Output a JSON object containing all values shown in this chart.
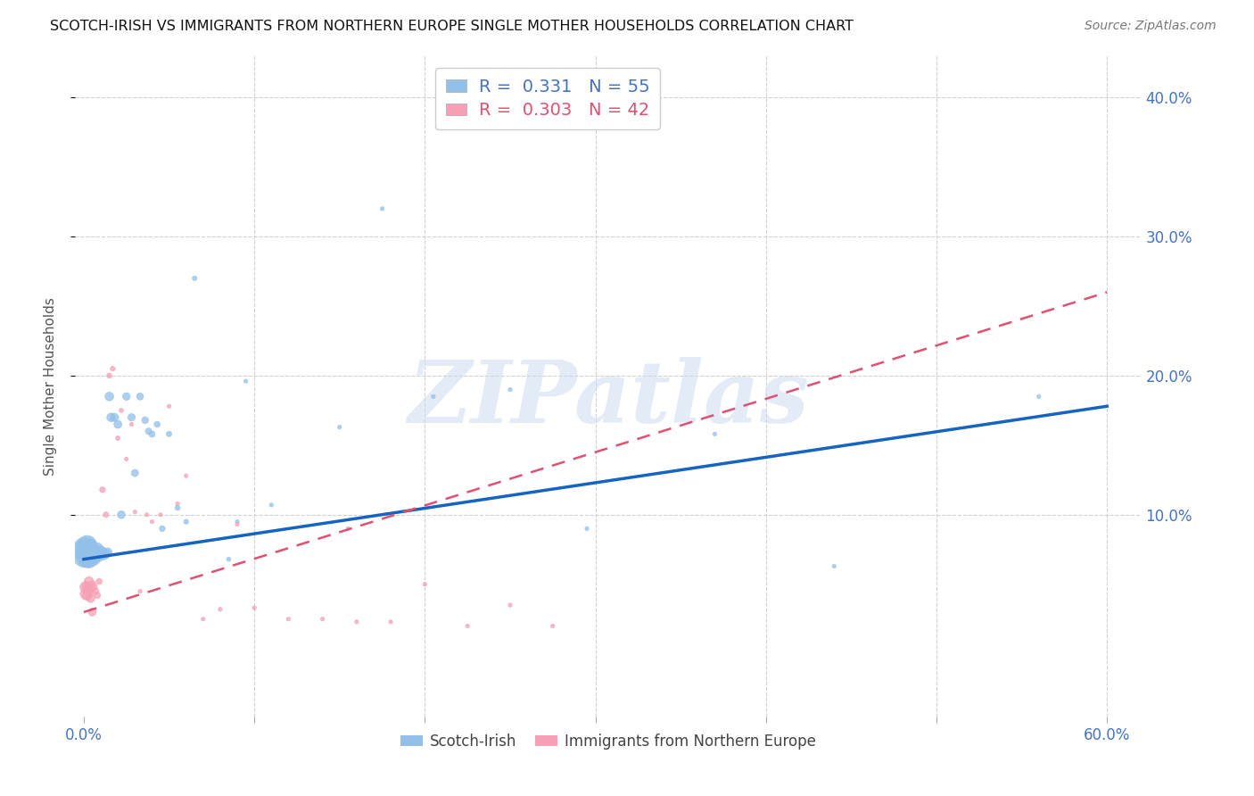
{
  "title": "SCOTCH-IRISH VS IMMIGRANTS FROM NORTHERN EUROPE SINGLE MOTHER HOUSEHOLDS CORRELATION CHART",
  "source": "Source: ZipAtlas.com",
  "ylabel": "Single Mother Households",
  "xlim": [
    -0.005,
    0.62
  ],
  "ylim": [
    -0.045,
    0.43
  ],
  "yticks": [
    0.1,
    0.2,
    0.3,
    0.4
  ],
  "yticklabels": [
    "10.0%",
    "20.0%",
    "30.0%",
    "40.0%"
  ],
  "xtick_positions": [
    0.0,
    0.1,
    0.2,
    0.3,
    0.4,
    0.5,
    0.6
  ],
  "xtick_labels": [
    "0.0%",
    "",
    "",
    "",
    "",
    "",
    "60.0%"
  ],
  "background_color": "#ffffff",
  "grid_color": "#d0d0d0",
  "watermark": "ZIPatlas",
  "series1": {
    "name": "Scotch-Irish",
    "color": "#92C0E8",
    "R": 0.331,
    "N": 55,
    "trend_color": "#1565C0",
    "trend_style": "solid",
    "x": [
      0.001,
      0.001,
      0.002,
      0.002,
      0.003,
      0.003,
      0.004,
      0.004,
      0.005,
      0.005,
      0.006,
      0.006,
      0.007,
      0.007,
      0.008,
      0.008,
      0.009,
      0.009,
      0.01,
      0.01,
      0.011,
      0.012,
      0.013,
      0.014,
      0.015,
      0.016,
      0.018,
      0.02,
      0.022,
      0.025,
      0.028,
      0.03,
      0.033,
      0.036,
      0.038,
      0.04,
      0.043,
      0.046,
      0.05,
      0.055,
      0.06,
      0.065,
      0.085,
      0.095,
      0.11,
      0.155,
      0.175,
      0.205,
      0.25,
      0.295,
      0.37,
      0.44,
      0.56,
      0.15,
      0.09
    ],
    "y": [
      0.072,
      0.075,
      0.07,
      0.078,
      0.068,
      0.074,
      0.072,
      0.077,
      0.07,
      0.075,
      0.073,
      0.068,
      0.074,
      0.07,
      0.072,
      0.076,
      0.073,
      0.07,
      0.074,
      0.072,
      0.073,
      0.071,
      0.072,
      0.073,
      0.185,
      0.17,
      0.17,
      0.165,
      0.1,
      0.185,
      0.17,
      0.13,
      0.185,
      0.168,
      0.16,
      0.158,
      0.165,
      0.09,
      0.158,
      0.105,
      0.095,
      0.27,
      0.068,
      0.196,
      0.107,
      0.09,
      0.32,
      0.185,
      0.19,
      0.09,
      0.158,
      0.063,
      0.185,
      0.163,
      0.095
    ],
    "sizes": [
      500,
      400,
      300,
      250,
      200,
      180,
      150,
      130,
      120,
      110,
      100,
      95,
      90,
      85,
      80,
      75,
      70,
      68,
      65,
      62,
      60,
      58,
      55,
      52,
      50,
      48,
      45,
      42,
      40,
      38,
      36,
      34,
      32,
      30,
      28,
      26,
      24,
      22,
      20,
      18,
      16,
      14,
      12,
      10,
      10,
      10,
      10,
      10,
      10,
      10,
      10,
      10,
      10,
      10,
      10
    ]
  },
  "series2": {
    "name": "Immigrants from Northern Europe",
    "color": "#F5A0B5",
    "R": 0.303,
    "N": 42,
    "trend_color": "#E05070",
    "trend_style": "dashed",
    "x": [
      0.001,
      0.001,
      0.002,
      0.002,
      0.003,
      0.003,
      0.004,
      0.004,
      0.005,
      0.005,
      0.006,
      0.007,
      0.008,
      0.009,
      0.011,
      0.013,
      0.015,
      0.017,
      0.02,
      0.022,
      0.025,
      0.028,
      0.03,
      0.033,
      0.037,
      0.04,
      0.045,
      0.05,
      0.055,
      0.06,
      0.07,
      0.08,
      0.09,
      0.1,
      0.12,
      0.14,
      0.16,
      0.18,
      0.2,
      0.225,
      0.25,
      0.275
    ],
    "y": [
      0.048,
      0.043,
      0.048,
      0.042,
      0.052,
      0.047,
      0.04,
      0.045,
      0.03,
      0.05,
      0.048,
      0.045,
      0.042,
      0.052,
      0.118,
      0.1,
      0.2,
      0.205,
      0.155,
      0.175,
      0.14,
      0.165,
      0.102,
      0.045,
      0.1,
      0.095,
      0.1,
      0.178,
      0.108,
      0.128,
      0.025,
      0.032,
      0.093,
      0.033,
      0.025,
      0.025,
      0.023,
      0.023,
      0.05,
      0.02,
      0.035,
      0.02
    ],
    "sizes": [
      80,
      75,
      70,
      65,
      60,
      55,
      50,
      45,
      40,
      35,
      30,
      28,
      26,
      24,
      22,
      20,
      18,
      16,
      14,
      12,
      10,
      10,
      10,
      10,
      10,
      10,
      10,
      10,
      10,
      10,
      10,
      10,
      10,
      10,
      10,
      10,
      10,
      10,
      10,
      10,
      10,
      10
    ]
  },
  "trend1_x0": 0.0,
  "trend1_x1": 0.6,
  "trend1_y0": 0.068,
  "trend1_y1": 0.178,
  "trend2_x0": 0.0,
  "trend2_x1": 0.6,
  "trend2_y0": 0.03,
  "trend2_y1": 0.26
}
